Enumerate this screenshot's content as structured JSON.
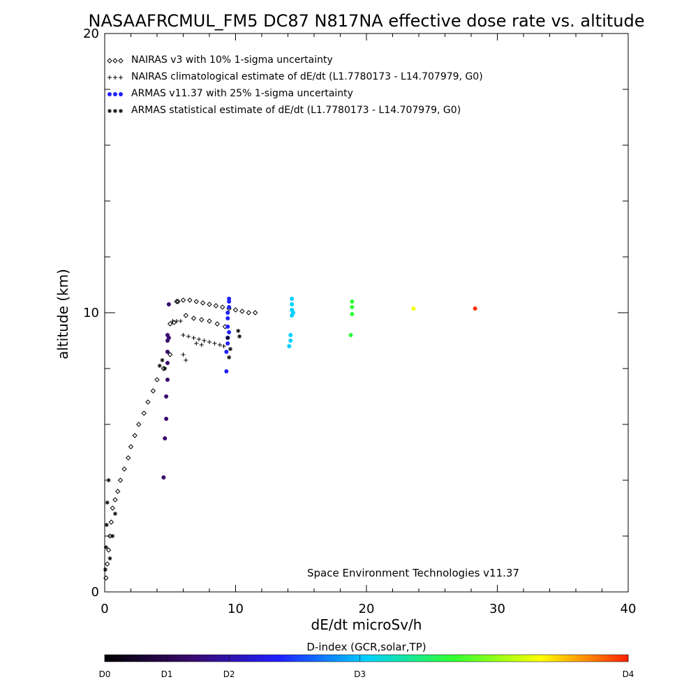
{
  "chart_data": {
    "type": "scatter",
    "title": "NASAAFRCMUL_FM5 DC87 N817NA effective dose rate vs. altitude",
    "xlabel": "dE/dt microSv/h",
    "ylabel": "altitude (km)",
    "xlim": [
      0,
      40
    ],
    "ylim": [
      0,
      20
    ],
    "x_ticks": [
      "0",
      "10",
      "20",
      "30",
      "40"
    ],
    "y_ticks": [
      "0",
      "10",
      "20"
    ],
    "grid": false,
    "legend_position": "top-left",
    "legend": [
      {
        "symbol": "◇◇◇",
        "label": "NAIRAS v3 with 10% 1-sigma uncertainty"
      },
      {
        "symbol": "+++",
        "label": "NAIRAS climatological estimate of dE/dt (L1.7780173 - L14.707979, G0)"
      },
      {
        "symbol": "●●●",
        "label": "ARMAS v11.37 with 25% 1-sigma uncertainty"
      },
      {
        "symbol": "***",
        "label": "ARMAS statistical estimate of dE/dt (L1.7780173 - L14.707979, G0)"
      }
    ],
    "annotation": "Space Environment Technologies v11.37",
    "colorbar": {
      "title": "D-index (GCR,solar,TP)",
      "ticks": [
        "D0",
        "D1",
        "D2",
        "D3",
        "D4"
      ],
      "positions": [
        0,
        4.75,
        9.5,
        19.5,
        40
      ],
      "colors": [
        "#000000",
        "#3a0a6e",
        "#2020ff",
        "#00d0ff",
        "#30ff30",
        "#ffff00",
        "#ff2000"
      ]
    },
    "series": [
      {
        "name": "NAIRAS v3 with 10% 1-sigma uncertainty",
        "marker": "diamond",
        "color": "#000000",
        "x": [
          0.1,
          0.2,
          0.3,
          0.4,
          0.5,
          0.6,
          0.8,
          1.0,
          1.2,
          1.5,
          1.8,
          2.0,
          2.3,
          2.6,
          3.0,
          3.3,
          3.7,
          4.0,
          4.5,
          5.0,
          5.5,
          6.0,
          6.5,
          7.0,
          7.5,
          8.0,
          8.5,
          9.0,
          9.5,
          10.0,
          10.5,
          11.0,
          11.5,
          6.2,
          6.8,
          7.4,
          8.0,
          8.6,
          9.2,
          5.0,
          5.3,
          5.6
        ],
        "y": [
          0.5,
          1.0,
          1.5,
          2.0,
          2.5,
          3.0,
          3.3,
          3.6,
          4.0,
          4.4,
          4.8,
          5.2,
          5.6,
          6.0,
          6.4,
          6.8,
          7.2,
          7.6,
          8.0,
          8.5,
          10.4,
          10.45,
          10.45,
          10.4,
          10.35,
          10.3,
          10.25,
          10.2,
          10.15,
          10.1,
          10.05,
          10.0,
          10.0,
          9.9,
          9.8,
          9.75,
          9.7,
          9.6,
          9.5,
          9.6,
          9.65,
          10.4
        ]
      },
      {
        "name": "NAIRAS climatological estimate of dE/dt (L1.7780173 - L14.707979, G0)",
        "marker": "plus",
        "color": "#000000",
        "x": [
          5.2,
          5.5,
          5.8,
          6.0,
          6.4,
          6.8,
          7.2,
          7.6,
          8.0,
          8.4,
          8.8,
          9.1,
          7.0,
          7.4,
          6.0,
          6.2
        ],
        "y": [
          9.7,
          9.7,
          9.7,
          9.2,
          9.15,
          9.1,
          9.05,
          9.0,
          8.95,
          8.9,
          8.85,
          8.8,
          8.9,
          8.85,
          8.5,
          8.3
        ]
      },
      {
        "name": "ARMAS v11.37 with 25% 1-sigma uncertainty",
        "marker": "dot",
        "color": "#3a0a6e",
        "x": [
          4.5,
          4.6,
          4.7,
          4.7,
          4.8,
          4.8,
          4.8,
          4.8,
          4.8,
          4.9,
          4.9,
          9.3,
          9.3,
          9.4,
          9.4,
          9.4,
          9.4,
          9.4,
          9.5,
          9.5,
          9.5,
          9.5,
          14.1,
          14.2,
          14.2,
          14.3,
          14.3,
          14.3,
          14.3,
          14.4,
          18.8,
          18.9,
          18.9,
          18.9,
          23.6,
          28.3
        ],
        "y": [
          4.1,
          5.5,
          6.2,
          7.0,
          7.6,
          8.2,
          8.6,
          9.0,
          9.2,
          10.3,
          9.1,
          7.9,
          8.6,
          8.9,
          9.1,
          9.5,
          9.8,
          10.0,
          10.2,
          10.4,
          10.5,
          9.3,
          8.8,
          9.0,
          9.2,
          9.9,
          10.1,
          10.3,
          10.5,
          10.0,
          9.2,
          9.95,
          10.2,
          10.4,
          10.15,
          10.15
        ],
        "dindex": [
          0.95,
          0.95,
          0.95,
          0.95,
          0.95,
          0.95,
          0.95,
          1.0,
          1.0,
          1.0,
          1.0,
          1.95,
          1.95,
          1.95,
          2.0,
          2.0,
          2.0,
          2.0,
          2.0,
          2.0,
          2.0,
          2.0,
          3.0,
          3.0,
          3.0,
          3.0,
          3.0,
          3.0,
          3.0,
          3.0,
          3.95,
          3.95,
          3.95,
          3.95,
          4.95,
          5.95
        ]
      },
      {
        "name": "ARMAS statistical estimate of dE/dt (L1.7780173 - L14.707979, G0)",
        "marker": "asterisk",
        "color": "#000000",
        "x": [
          0.05,
          0.1,
          0.15,
          0.2,
          0.3,
          0.4,
          0.6,
          0.8,
          4.2,
          4.4,
          4.6,
          9.4,
          9.6,
          10.2,
          10.3,
          9.5
        ],
        "y": [
          0.8,
          1.6,
          2.4,
          3.2,
          4.0,
          1.2,
          2.0,
          2.8,
          8.1,
          8.3,
          8.0,
          9.1,
          8.7,
          9.35,
          9.15,
          8.4
        ]
      }
    ]
  }
}
